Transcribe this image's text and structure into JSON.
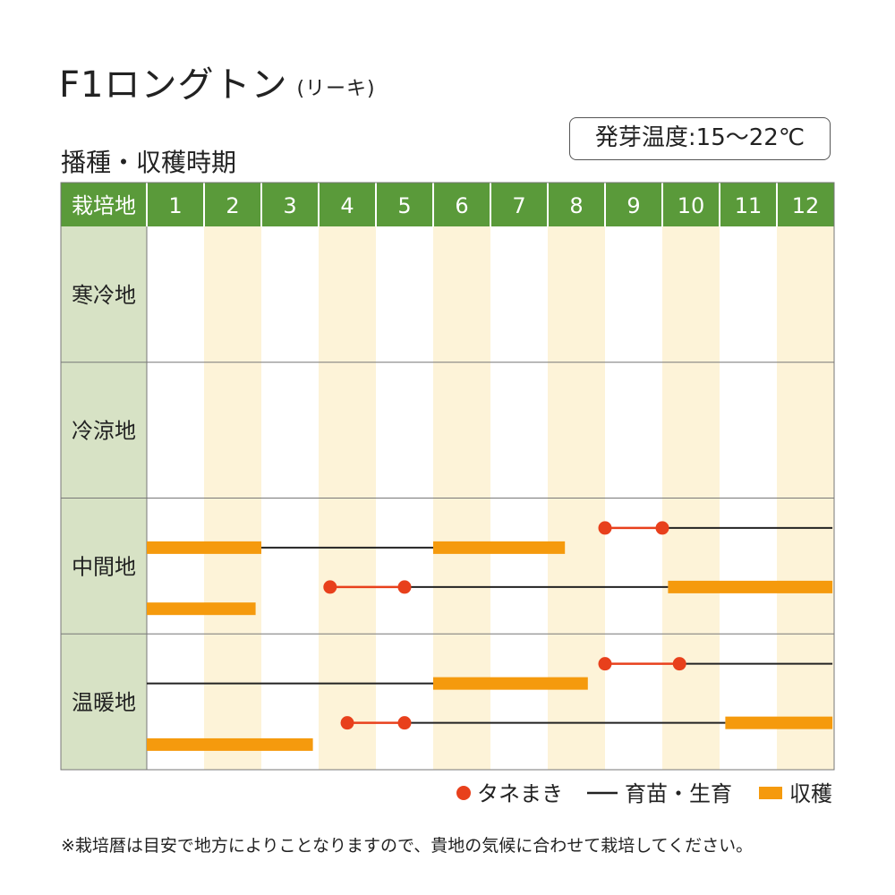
{
  "title": "F1ロングトン",
  "subtitle": "(リーキ)",
  "germination_temp": "発芽温度:15〜22℃",
  "section_title": "播種・収穫時期",
  "note": "※栽培暦は目安で地方によりことなりますので、貴地の気候に合わせて栽培してください。",
  "colors": {
    "header_green": "#5a9a3a",
    "region_cell": "#d7e2c5",
    "stripe": "#fdf3d8",
    "sowing": "#e8401c",
    "growing": "#222222",
    "harvest": "#f59a0d"
  },
  "chart_data": {
    "type": "gantt",
    "header_label": "栽培地",
    "months": [
      "1",
      "2",
      "3",
      "4",
      "5",
      "6",
      "7",
      "8",
      "9",
      "10",
      "11",
      "12"
    ],
    "regions": [
      {
        "name": "寒冷地",
        "schedules": []
      },
      {
        "name": "冷涼地",
        "schedules": []
      },
      {
        "name": "中間地",
        "schedules": [
          {
            "sowing": [
              9.0,
              10.0
            ],
            "growing": [
              10.0,
              12.97
            ],
            "harvest_next_year": [
              1.0,
              3.0
            ],
            "growing_next_year": [
              1.0,
              6.0
            ],
            "harvest_2nd_year": [
              6.0,
              8.3
            ]
          },
          {
            "sowing": [
              4.2,
              5.5
            ],
            "growing": [
              5.5,
              10.1
            ],
            "harvest": [
              10.1,
              12.97
            ],
            "harvest_next_year": [
              1.0,
              2.9
            ]
          }
        ]
      },
      {
        "name": "温暖地",
        "schedules": [
          {
            "sowing": [
              9.0,
              10.3
            ],
            "growing": [
              10.3,
              12.97
            ],
            "growing_next_year": [
              1.0,
              6.0
            ],
            "harvest_2nd_year": [
              6.0,
              8.7
            ]
          },
          {
            "sowing": [
              4.5,
              5.5
            ],
            "growing": [
              5.5,
              11.1
            ],
            "harvest": [
              11.1,
              12.97
            ],
            "harvest_next_year": [
              1.0,
              3.9
            ]
          }
        ]
      }
    ],
    "legend": [
      {
        "key": "sowing",
        "label": "タネまき"
      },
      {
        "key": "growing",
        "label": "育苗・生育"
      },
      {
        "key": "harvest",
        "label": "収穫"
      }
    ]
  }
}
